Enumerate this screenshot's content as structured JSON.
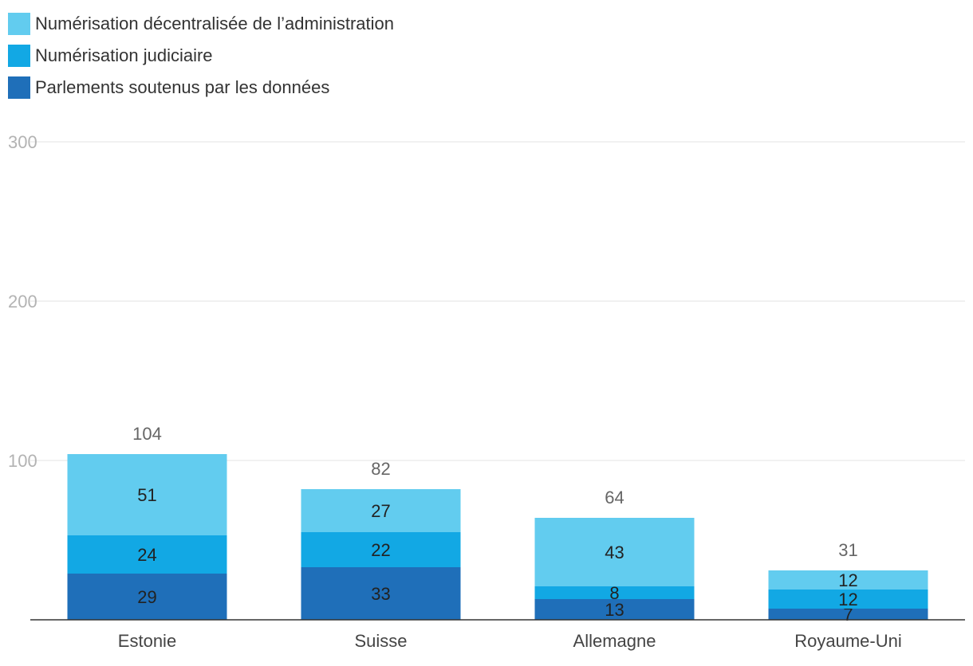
{
  "chart_data": {
    "type": "bar",
    "stacked": true,
    "categories": [
      "Estonie",
      "Suisse",
      "Allemagne",
      "Royaume-Uni"
    ],
    "series": [
      {
        "name": "Parlements soutenus par les données",
        "color": "#1f6fb9",
        "values": [
          29,
          33,
          13,
          7
        ]
      },
      {
        "name": "Numérisation judiciaire",
        "color": "#12a8e4",
        "values": [
          24,
          22,
          8,
          12
        ]
      },
      {
        "name": "Numérisation décentralisée de l’administration",
        "color": "#62ccef",
        "values": [
          51,
          27,
          43,
          12
        ]
      }
    ],
    "totals": [
      104,
      82,
      64,
      31
    ],
    "y_ticks": [
      100,
      200,
      300
    ],
    "ylim": [
      0,
      300
    ],
    "grid": true,
    "legend_position": "top-left"
  }
}
